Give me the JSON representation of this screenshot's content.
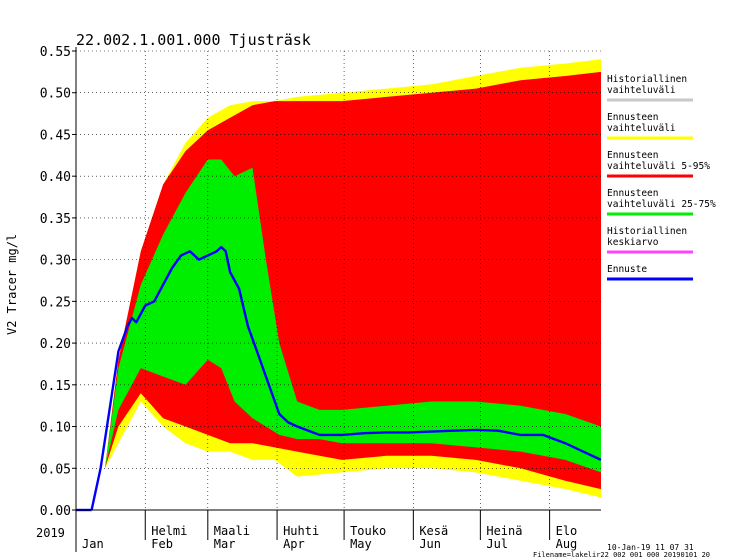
{
  "chart_data": {
    "type": "area",
    "title": "22.002.1.001.000 Tjusträsk",
    "ylabel": "V2 Tracer mg/l",
    "year_label": "2019",
    "ylim": [
      0,
      0.55
    ],
    "yticks": [
      0.0,
      0.05,
      0.1,
      0.15,
      0.2,
      0.25,
      0.3,
      0.35,
      0.4,
      0.45,
      0.5,
      0.55
    ],
    "ytick_labels": [
      "0.00",
      "0.05",
      "0.10",
      "0.15",
      "0.20",
      "0.25",
      "0.30",
      "0.35",
      "0.40",
      "0.45",
      "0.50",
      "0.55"
    ],
    "x_unit": "day of year 2019",
    "xlim": [
      1,
      236
    ],
    "months": [
      {
        "fi": "",
        "en": "Jan",
        "start_day": 1
      },
      {
        "fi": "Helmi",
        "en": "Feb",
        "start_day": 32
      },
      {
        "fi": "Maali",
        "en": "Mar",
        "start_day": 60
      },
      {
        "fi": "Huhti",
        "en": "Apr",
        "start_day": 91
      },
      {
        "fi": "Touko",
        "en": "May",
        "start_day": 121
      },
      {
        "fi": "Kesä",
        "en": "Jun",
        "start_day": 152
      },
      {
        "fi": "Heinä",
        "en": "Jul",
        "start_day": 182
      },
      {
        "fi": "Elo",
        "en": "Aug",
        "start_day": 213
      }
    ],
    "legend_position": "right",
    "grid": true,
    "series": [
      {
        "name": "Historiallinen vaihteluväli",
        "color": "#c8c8c8",
        "kind": "band",
        "x": [],
        "lower": [],
        "upper": []
      },
      {
        "name": "Ennusteen vaihteluväli",
        "color": "#ffff00",
        "kind": "band",
        "x": [
          8,
          14,
          20,
          30,
          40,
          50,
          60,
          70,
          80,
          90,
          100,
          120,
          140,
          160,
          180,
          200,
          220,
          236
        ],
        "upper": [
          0.0,
          0.05,
          0.18,
          0.31,
          0.39,
          0.44,
          0.47,
          0.485,
          0.49,
          0.49,
          0.495,
          0.5,
          0.505,
          0.51,
          0.52,
          0.53,
          0.535,
          0.54
        ],
        "lower": [
          0.0,
          0.05,
          0.08,
          0.13,
          0.1,
          0.08,
          0.07,
          0.07,
          0.06,
          0.06,
          0.04,
          0.045,
          0.05,
          0.05,
          0.045,
          0.035,
          0.025,
          0.015
        ]
      },
      {
        "name": "Ennusteen vaihteluväli 5-95%",
        "color": "#ff0000",
        "kind": "band",
        "x": [
          8,
          14,
          20,
          30,
          40,
          50,
          60,
          70,
          80,
          90,
          100,
          120,
          140,
          160,
          180,
          200,
          220,
          236
        ],
        "upper": [
          0.0,
          0.05,
          0.18,
          0.31,
          0.39,
          0.43,
          0.455,
          0.47,
          0.485,
          0.49,
          0.49,
          0.49,
          0.495,
          0.5,
          0.505,
          0.515,
          0.52,
          0.525
        ],
        "lower": [
          0.0,
          0.05,
          0.1,
          0.14,
          0.11,
          0.1,
          0.09,
          0.08,
          0.08,
          0.075,
          0.07,
          0.06,
          0.065,
          0.065,
          0.06,
          0.05,
          0.035,
          0.025
        ]
      },
      {
        "name": "Ennusteen vaihteluväli 25-75%",
        "color": "#00ee00",
        "kind": "band",
        "x": [
          8,
          14,
          20,
          30,
          40,
          50,
          60,
          66,
          72,
          80,
          86,
          92,
          100,
          110,
          120,
          140,
          160,
          180,
          200,
          220,
          236
        ],
        "upper": [
          0.0,
          0.05,
          0.17,
          0.27,
          0.33,
          0.38,
          0.42,
          0.42,
          0.4,
          0.41,
          0.3,
          0.2,
          0.13,
          0.12,
          0.12,
          0.125,
          0.13,
          0.13,
          0.125,
          0.115,
          0.1
        ],
        "lower": [
          0.0,
          0.05,
          0.12,
          0.17,
          0.16,
          0.15,
          0.18,
          0.17,
          0.13,
          0.11,
          0.1,
          0.09,
          0.085,
          0.085,
          0.08,
          0.08,
          0.08,
          0.075,
          0.07,
          0.06,
          0.045
        ]
      },
      {
        "name": "Historiallinen keskiarvo",
        "color": "#ff44ff",
        "kind": "line",
        "x": [],
        "y": []
      },
      {
        "name": "Ennuste",
        "color": "#0000ff",
        "kind": "line",
        "x": [
          8,
          12,
          16,
          20,
          24,
          26,
          28,
          32,
          36,
          40,
          44,
          48,
          52,
          56,
          60,
          64,
          66,
          68,
          70,
          74,
          78,
          82,
          86,
          90,
          92,
          96,
          100,
          110,
          120,
          130,
          140,
          150,
          160,
          170,
          180,
          190,
          200,
          210,
          220,
          228,
          236
        ],
        "y": [
          0.0,
          0.05,
          0.12,
          0.19,
          0.22,
          0.23,
          0.225,
          0.245,
          0.25,
          0.27,
          0.29,
          0.305,
          0.31,
          0.3,
          0.305,
          0.31,
          0.315,
          0.31,
          0.285,
          0.265,
          0.22,
          0.19,
          0.16,
          0.13,
          0.115,
          0.105,
          0.1,
          0.09,
          0.09,
          0.092,
          0.093,
          0.093,
          0.094,
          0.095,
          0.096,
          0.095,
          0.09,
          0.09,
          0.08,
          0.07,
          0.06
        ]
      }
    ],
    "footer": [
      "10-Jan-19 11 07 31",
      "Filename=lakelir22 002 001 000 20190101 20"
    ]
  }
}
